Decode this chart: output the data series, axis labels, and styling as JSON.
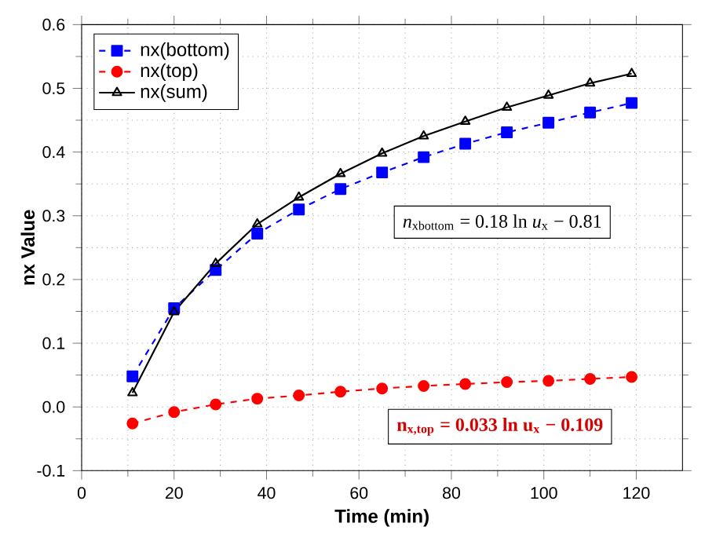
{
  "chart_data": {
    "type": "line",
    "xlabel": "Time (min)",
    "ylabel": "nx Value",
    "x": [
      11,
      20,
      29,
      38,
      47,
      56,
      65,
      74,
      83,
      92,
      101,
      110,
      119
    ],
    "series": [
      {
        "name": "nx(bottom)",
        "color": "#0000ff",
        "marker": "square",
        "line_style": "dashed",
        "values": [
          0.048,
          0.155,
          0.215,
          0.272,
          0.31,
          0.342,
          0.368,
          0.392,
          0.413,
          0.431,
          0.446,
          0.462,
          0.477
        ]
      },
      {
        "name": "nx(top)",
        "color": "#ff0000",
        "marker": "circle",
        "line_style": "dashed",
        "values": [
          -0.026,
          -0.008,
          0.004,
          0.013,
          0.018,
          0.024,
          0.029,
          0.033,
          0.036,
          0.039,
          0.041,
          0.044,
          0.047
        ]
      },
      {
        "name": "nx(sum)",
        "color": "#000000",
        "marker": "triangle",
        "line_style": "solid",
        "values": [
          0.022,
          0.149,
          0.225,
          0.287,
          0.329,
          0.366,
          0.398,
          0.425,
          0.448,
          0.47,
          0.489,
          0.508,
          0.523
        ]
      }
    ],
    "xlim": [
      0,
      130
    ],
    "ylim": [
      -0.1,
      0.6
    ],
    "xticks": [
      0,
      20,
      40,
      60,
      80,
      100,
      120
    ],
    "yticks": [
      {
        "value": -0.1,
        "label": "-0.1"
      },
      {
        "value": 0,
        "label": "0.0"
      },
      {
        "value": 0.1,
        "label": "0.1"
      },
      {
        "value": 0.2,
        "label": "0.2"
      },
      {
        "value": 0.3,
        "label": "0.3"
      },
      {
        "value": 0.4,
        "label": "0.4"
      },
      {
        "value": 0.5,
        "label": "0.5"
      },
      {
        "value": 0.6,
        "label": "0.6"
      }
    ],
    "grid": true,
    "legend": "top left",
    "annotations": [
      "*n*$_{xbottom}$ = 0.18 ln *u*$_{x}$ − 0.81",
      "**n$_{x,top}$ = 0.033 ln u$_{x}$ − 0.109**"
    ]
  }
}
